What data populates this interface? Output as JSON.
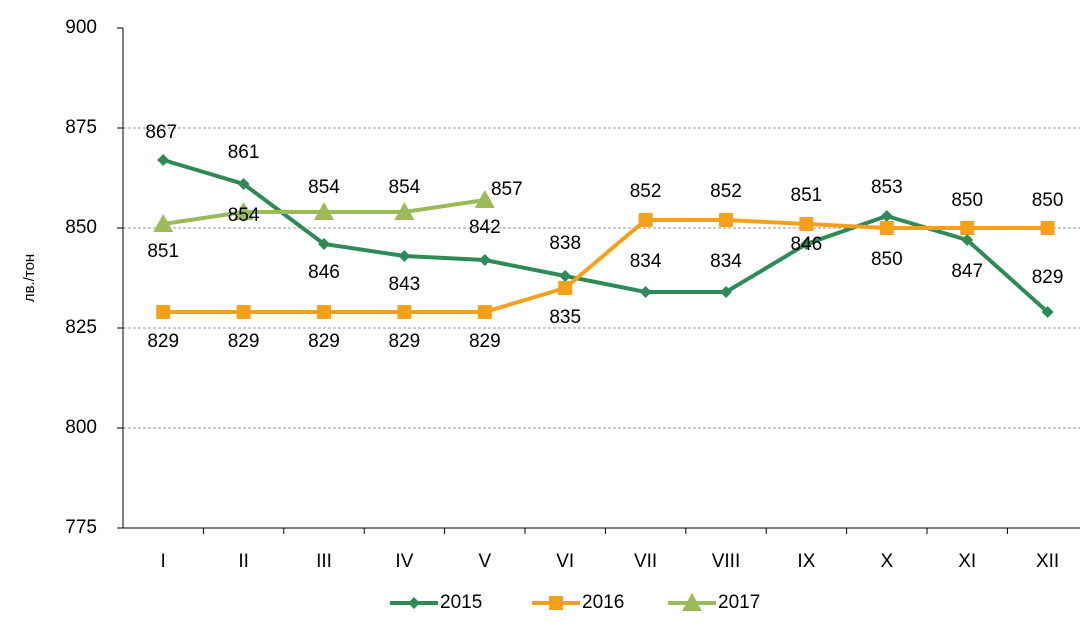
{
  "chart_data": {
    "type": "line",
    "y_label": "лв./тон",
    "categories": [
      "I",
      "II",
      "III",
      "IV",
      "V",
      "VI",
      "VII",
      "VIII",
      "IX",
      "X",
      "XI",
      "XII"
    ],
    "series": [
      {
        "name": "2015",
        "color": "#2e8b57",
        "marker": "diamond",
        "values": [
          867,
          861,
          846,
          843,
          842,
          838,
          834,
          834,
          846,
          853,
          847,
          829
        ]
      },
      {
        "name": "2016",
        "color": "#f7a11a",
        "marker": "square",
        "values": [
          829,
          829,
          829,
          829,
          829,
          835,
          852,
          852,
          851,
          850,
          850,
          850
        ]
      },
      {
        "name": "2017",
        "color": "#9bbb59",
        "marker": "triangle",
        "values": [
          851,
          854,
          854,
          854,
          857,
          null,
          null,
          null,
          null,
          null,
          null,
          null
        ]
      }
    ],
    "ylim": [
      775,
      900
    ],
    "yticks": [
      775,
      800,
      825,
      850,
      875,
      900
    ],
    "grid": true,
    "legend": "bottom"
  }
}
